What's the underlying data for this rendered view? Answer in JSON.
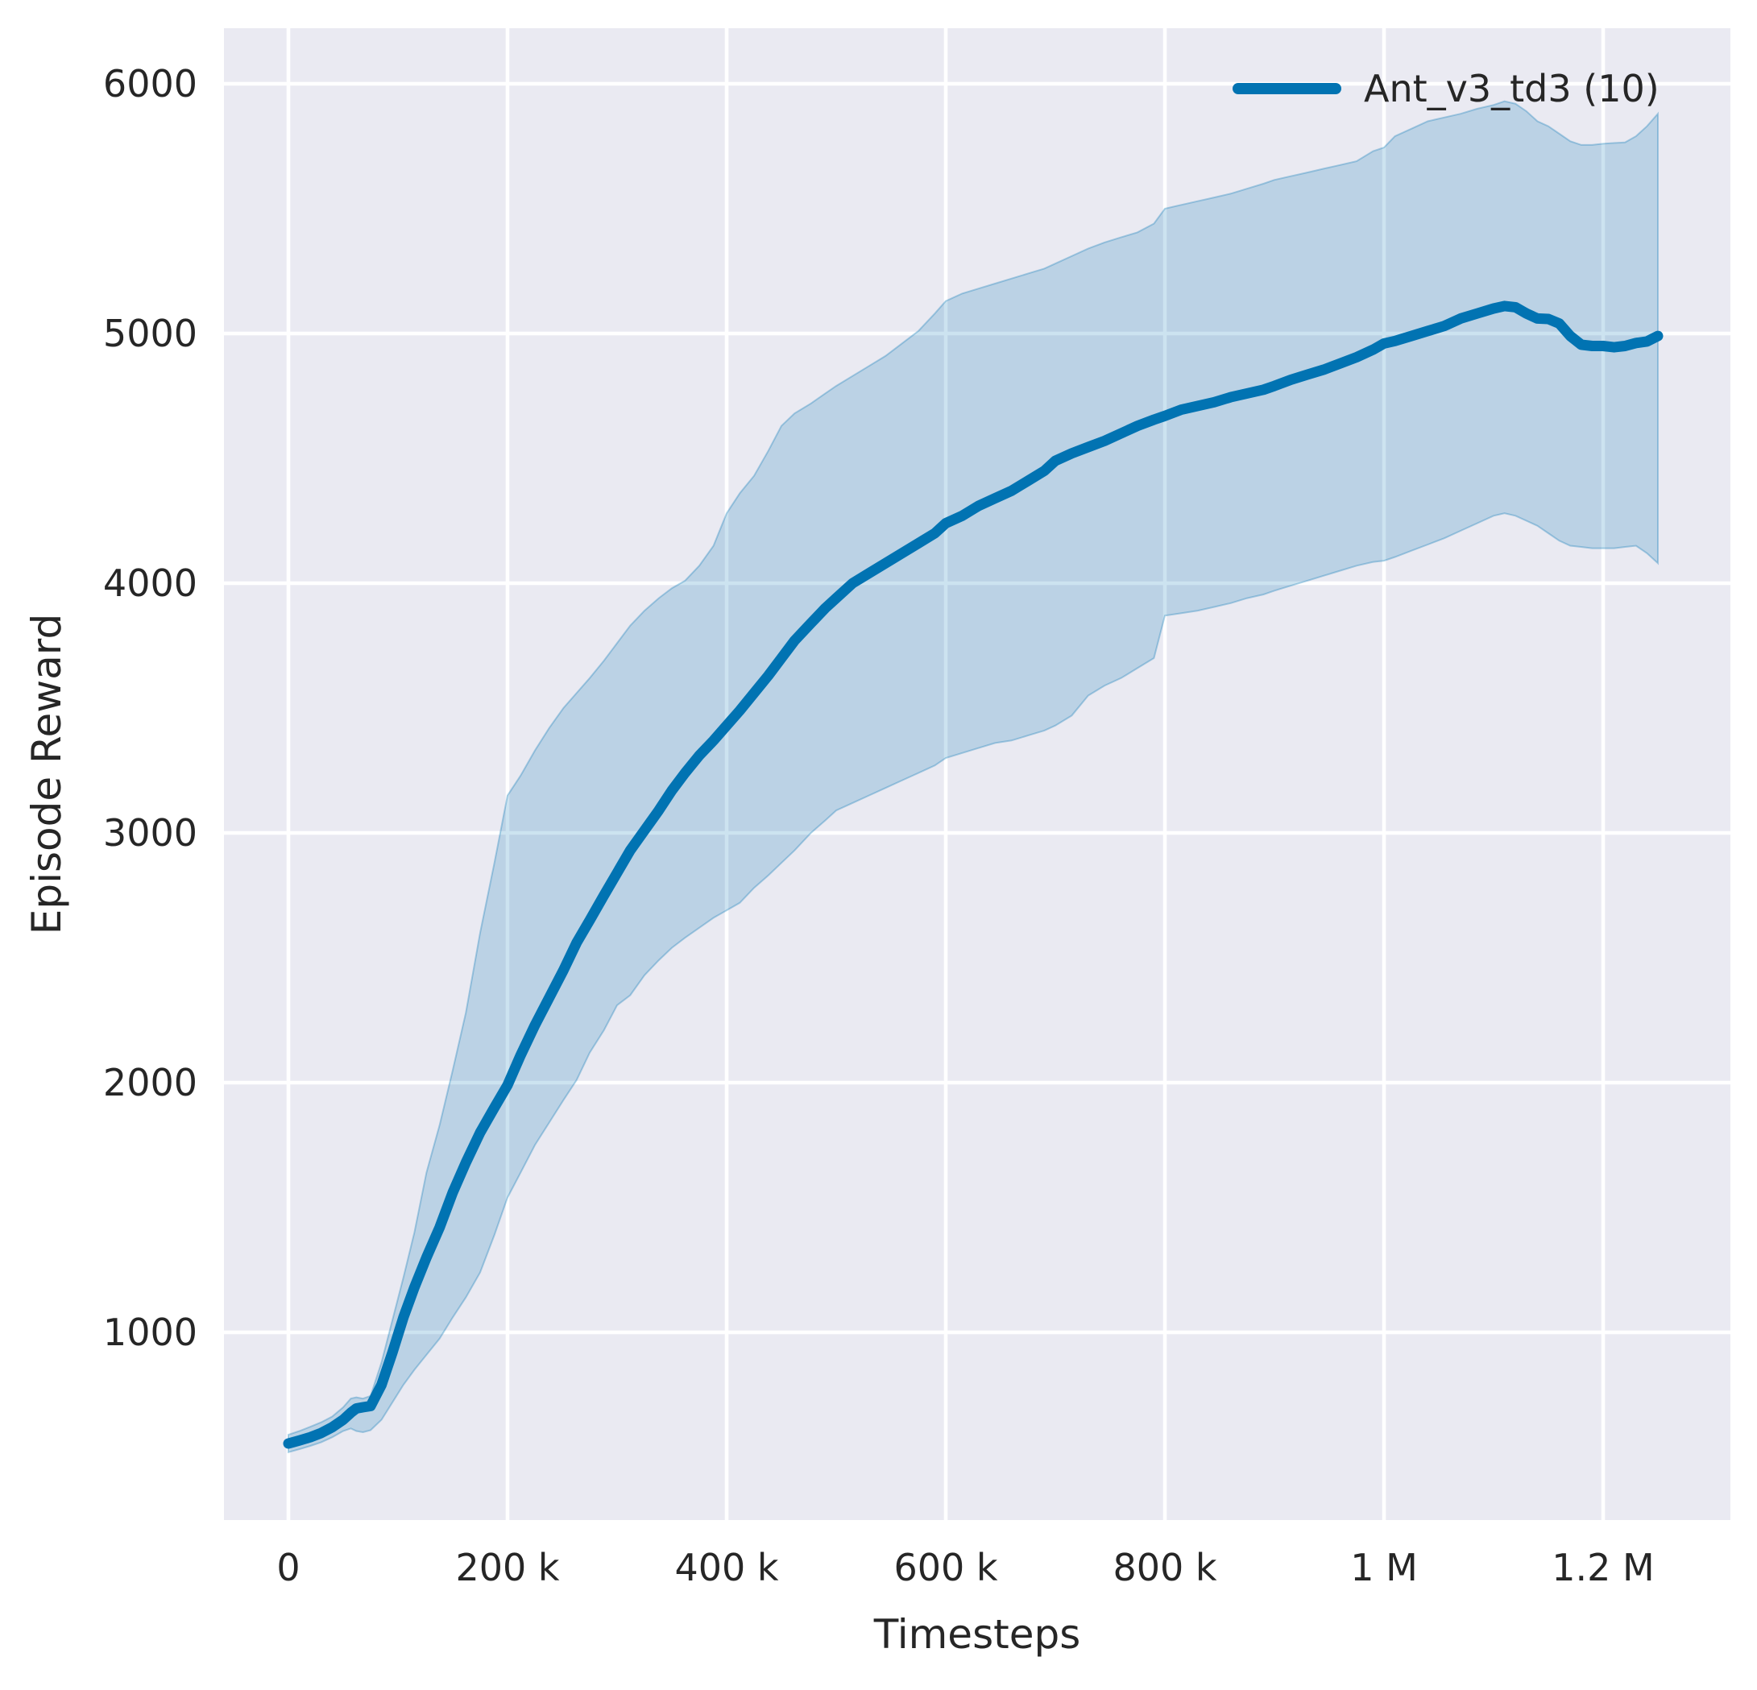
{
  "figure": {
    "background": "#ffffff",
    "axes_background": "#eaeaf2",
    "grid_color": "#ffffff",
    "text_color": "#262626"
  },
  "chart_data": {
    "type": "line",
    "title": "",
    "xlabel": "Timesteps",
    "ylabel": "Episode Reward",
    "grid": true,
    "legend_position": "upper right",
    "xlim": [
      -59000,
      1316000
    ],
    "ylim": [
      250,
      6222
    ],
    "x_ticks": [
      {
        "value": 0,
        "label": "0"
      },
      {
        "value": 200000,
        "label": "200 k"
      },
      {
        "value": 400000,
        "label": "400 k"
      },
      {
        "value": 600000,
        "label": "600 k"
      },
      {
        "value": 800000,
        "label": "800 k"
      },
      {
        "value": 1000000,
        "label": "1 M"
      },
      {
        "value": 1200000,
        "label": "1.2 M"
      }
    ],
    "y_ticks": [
      {
        "value": 1000,
        "label": "1000"
      },
      {
        "value": 2000,
        "label": "2000"
      },
      {
        "value": 3000,
        "label": "3000"
      },
      {
        "value": 4000,
        "label": "4000"
      },
      {
        "value": 5000,
        "label": "5000"
      },
      {
        "value": 6000,
        "label": "6000"
      }
    ],
    "series": [
      {
        "name": "Ant_v3_td3 (10)",
        "color": "#0173b2",
        "band_alpha": 0.2,
        "x": [
          0,
          10000,
          20000,
          30000,
          40000,
          50000,
          57000,
          62000,
          68000,
          75000,
          85000,
          95000,
          105000,
          115000,
          126000,
          138000,
          150000,
          162000,
          175000,
          188000,
          200000,
          212000,
          225000,
          238000,
          251000,
          263000,
          275000,
          288000,
          300000,
          312000,
          325000,
          338000,
          350000,
          362000,
          375000,
          388000,
          400000,
          412000,
          425000,
          438000,
          450000,
          462000,
          477000,
          490000,
          500000,
          515000,
          530000,
          545000,
          560000,
          575000,
          590000,
          600000,
          615000,
          630000,
          645000,
          660000,
          675000,
          690000,
          700000,
          715000,
          730000,
          745000,
          760000,
          775000,
          790000,
          800000,
          815000,
          830000,
          845000,
          860000,
          875000,
          890000,
          900000,
          915000,
          930000,
          945000,
          960000,
          975000,
          990000,
          1000000,
          1010000,
          1025000,
          1040000,
          1055000,
          1070000,
          1085000,
          1100000,
          1110000,
          1120000,
          1130000,
          1140000,
          1150000,
          1160000,
          1170000,
          1180000,
          1190000,
          1200000,
          1210000,
          1220000,
          1230000,
          1240000,
          1250000
        ],
        "mean": [
          555,
          567,
          580,
          597,
          620,
          650,
          678,
          695,
          700,
          705,
          790,
          920,
          1060,
          1180,
          1300,
          1420,
          1560,
          1680,
          1800,
          1900,
          1990,
          2110,
          2230,
          2340,
          2450,
          2560,
          2650,
          2750,
          2840,
          2930,
          3010,
          3090,
          3170,
          3240,
          3310,
          3370,
          3430,
          3490,
          3560,
          3630,
          3700,
          3770,
          3840,
          3900,
          3940,
          4000,
          4040,
          4080,
          4120,
          4160,
          4200,
          4240,
          4270,
          4310,
          4340,
          4370,
          4410,
          4450,
          4490,
          4520,
          4545,
          4570,
          4600,
          4630,
          4655,
          4670,
          4695,
          4710,
          4725,
          4745,
          4760,
          4775,
          4790,
          4815,
          4835,
          4855,
          4880,
          4905,
          4935,
          4960,
          4970,
          4990,
          5010,
          5030,
          5060,
          5080,
          5100,
          5110,
          5105,
          5080,
          5060,
          5058,
          5040,
          4990,
          4955,
          4950,
          4950,
          4945,
          4950,
          4962,
          4968,
          4990
        ],
        "lower": [
          520,
          532,
          545,
          560,
          580,
          605,
          615,
          605,
          600,
          608,
          650,
          720,
          790,
          850,
          910,
          975,
          1060,
          1140,
          1240,
          1390,
          1540,
          1640,
          1750,
          1840,
          1930,
          2010,
          2120,
          2210,
          2310,
          2350,
          2430,
          2490,
          2540,
          2580,
          2620,
          2660,
          2690,
          2720,
          2780,
          2830,
          2880,
          2930,
          3000,
          3050,
          3090,
          3120,
          3150,
          3180,
          3210,
          3240,
          3270,
          3300,
          3320,
          3340,
          3360,
          3370,
          3390,
          3410,
          3430,
          3470,
          3550,
          3590,
          3620,
          3660,
          3700,
          3870,
          3880,
          3890,
          3905,
          3920,
          3940,
          3955,
          3970,
          3990,
          4010,
          4030,
          4050,
          4070,
          4085,
          4090,
          4105,
          4130,
          4155,
          4180,
          4210,
          4240,
          4270,
          4280,
          4270,
          4250,
          4230,
          4200,
          4170,
          4150,
          4145,
          4140,
          4140,
          4140,
          4145,
          4150,
          4120,
          4080
        ],
        "upper": [
          590,
          605,
          622,
          640,
          663,
          700,
          735,
          740,
          735,
          745,
          880,
          1050,
          1220,
          1400,
          1640,
          1830,
          2050,
          2280,
          2600,
          2880,
          3150,
          3230,
          3330,
          3420,
          3500,
          3560,
          3620,
          3690,
          3760,
          3830,
          3890,
          3940,
          3980,
          4010,
          4070,
          4150,
          4280,
          4360,
          4430,
          4530,
          4630,
          4680,
          4720,
          4760,
          4790,
          4830,
          4870,
          4910,
          4960,
          5010,
          5080,
          5130,
          5160,
          5180,
          5200,
          5220,
          5240,
          5260,
          5280,
          5310,
          5340,
          5365,
          5385,
          5405,
          5440,
          5500,
          5515,
          5530,
          5545,
          5560,
          5580,
          5600,
          5615,
          5630,
          5645,
          5660,
          5675,
          5690,
          5730,
          5745,
          5790,
          5820,
          5850,
          5865,
          5880,
          5900,
          5915,
          5930,
          5920,
          5890,
          5850,
          5830,
          5800,
          5770,
          5755,
          5755,
          5760,
          5763,
          5765,
          5790,
          5830,
          5880
        ]
      }
    ]
  }
}
